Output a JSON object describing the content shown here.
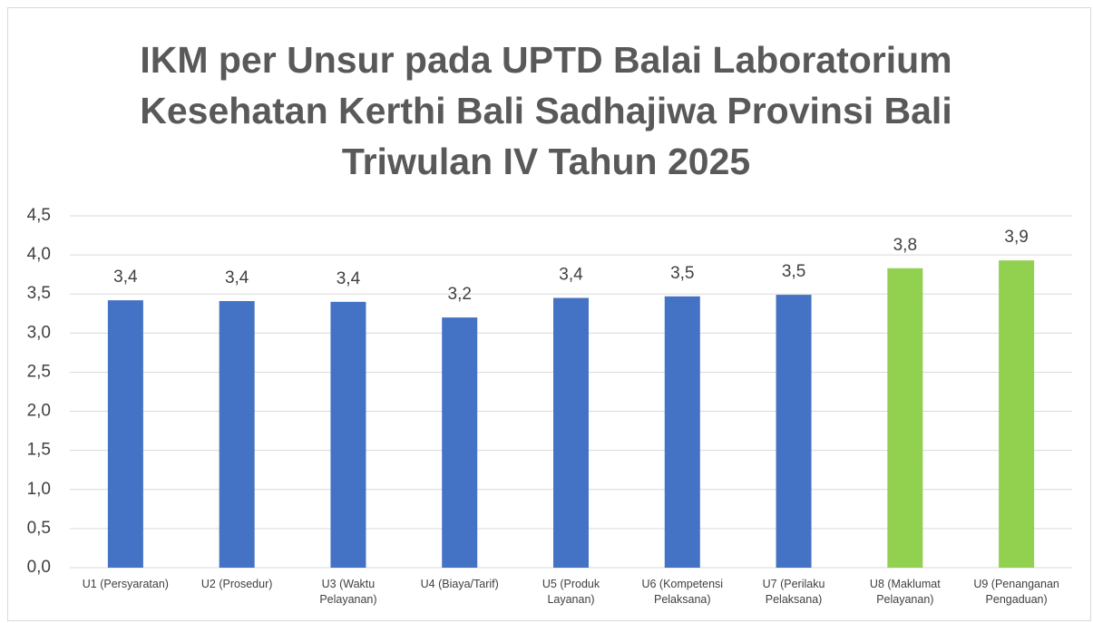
{
  "chart_data": {
    "type": "bar",
    "title": "IKM per Unsur pada UPTD Balai Laboratorium Kesehatan Kerthi Bali Sadhajiwa Provinsi Bali Triwulan IV Tahun 2025",
    "categories": [
      "U1 (Persyaratan)",
      "U2 (Prosedur)",
      "U3 (Waktu Pelayanan)",
      "U4 (Biaya/Tarif)",
      "U5 (Produk Layanan)",
      "U6 (Kompetensi Pelaksana)",
      "U7 (Perilaku Pelaksana)",
      "U8 (Maklumat Pelayanan)",
      "U9 (Penanganan Pengaduan)"
    ],
    "values": [
      3.42,
      3.41,
      3.4,
      3.2,
      3.45,
      3.47,
      3.49,
      3.83,
      3.93
    ],
    "value_labels": [
      "3,4",
      "3,4",
      "3,4",
      "3,2",
      "3,4",
      "3,5",
      "3,5",
      "3,8",
      "3,9"
    ],
    "colors": [
      "#4472c4",
      "#4472c4",
      "#4472c4",
      "#4472c4",
      "#4472c4",
      "#4472c4",
      "#4472c4",
      "#92d050",
      "#92d050"
    ],
    "ylim": [
      0,
      4.5
    ],
    "yticks": [
      {
        "value": 0,
        "label": "0,0"
      },
      {
        "value": 0.5,
        "label": "0,5"
      },
      {
        "value": 1,
        "label": "1,0"
      },
      {
        "value": 1.5,
        "label": "1,5"
      },
      {
        "value": 2,
        "label": "2,0"
      },
      {
        "value": 2.5,
        "label": "2,5"
      },
      {
        "value": 3,
        "label": "3,0"
      },
      {
        "value": 3.5,
        "label": "3,5"
      },
      {
        "value": 4,
        "label": "4,0"
      },
      {
        "value": 4.5,
        "label": "4,5"
      }
    ],
    "grid": true
  }
}
